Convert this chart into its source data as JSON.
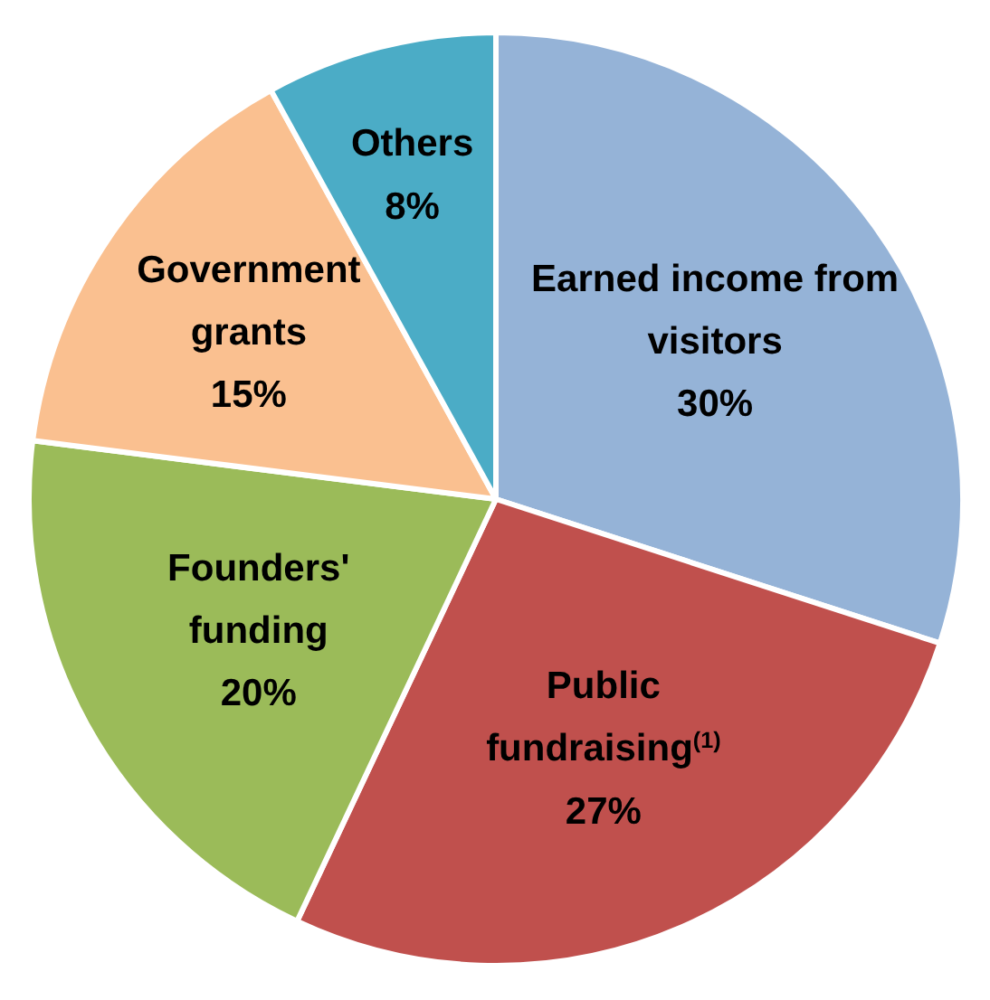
{
  "chart_data": {
    "type": "pie",
    "categories": [
      "Earned income from visitors",
      "Public fundraising$^{(1)}$",
      "Founders' funding",
      "Government grants",
      "Others"
    ],
    "values": [
      30,
      27,
      20,
      15,
      8
    ],
    "colors": [
      "#95b3d7",
      "#c0504d",
      "#9bbb59",
      "#fac090",
      "#4bacc6"
    ],
    "value_labels": [
      "30%",
      "27%",
      "20%",
      "15%",
      "8%"
    ]
  }
}
